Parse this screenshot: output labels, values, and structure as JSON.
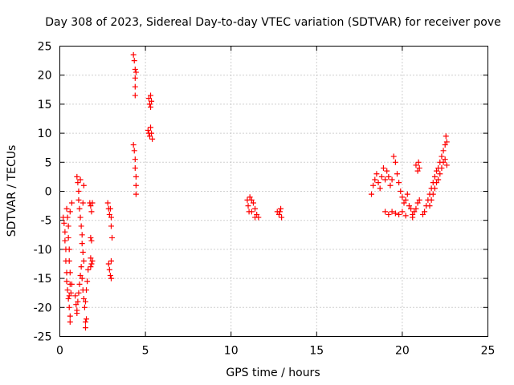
{
  "chart_data": {
    "type": "scatter",
    "title": "Day 308 of 2023, Sidereal Day-to-day VTEC variation (SDTVAR) for receiver pove",
    "xlabel": "GPS time / hours",
    "ylabel": "SDTVAR / TECUs",
    "xlim": [
      0,
      25
    ],
    "ylim": [
      -25,
      25
    ],
    "xticks": [
      0,
      5,
      10,
      15,
      20,
      25
    ],
    "yticks": [
      -25,
      -20,
      -15,
      -10,
      -5,
      0,
      5,
      10,
      15,
      20,
      25
    ],
    "grid": true,
    "marker": "+",
    "color": "#ff0000",
    "series": [
      {
        "name": "SDTVAR",
        "points": [
          [
            0.2,
            -4.5
          ],
          [
            0.25,
            -5.5
          ],
          [
            0.3,
            -7
          ],
          [
            0.3,
            -8.5
          ],
          [
            0.35,
            -10
          ],
          [
            0.35,
            -12
          ],
          [
            0.4,
            -14
          ],
          [
            0.4,
            -15.5
          ],
          [
            0.45,
            -17
          ],
          [
            0.5,
            -18.5
          ],
          [
            0.55,
            -20
          ],
          [
            0.6,
            -21.5
          ],
          [
            0.6,
            -22.5
          ],
          [
            0.4,
            -3
          ],
          [
            0.45,
            -4.5
          ],
          [
            0.5,
            -6
          ],
          [
            0.5,
            -8
          ],
          [
            0.55,
            -10
          ],
          [
            0.55,
            -12
          ],
          [
            0.6,
            -14
          ],
          [
            0.6,
            -16
          ],
          [
            0.55,
            -18
          ],
          [
            0.6,
            -3.5
          ],
          [
            0.7,
            -2
          ],
          [
            0.7,
            -16
          ],
          [
            0.65,
            -17.5
          ],
          [
            0.9,
            -18
          ],
          [
            0.95,
            -19.5
          ],
          [
            1.0,
            -20.5
          ],
          [
            1.0,
            -21
          ],
          [
            1.05,
            -19
          ],
          [
            1.1,
            -17.5
          ],
          [
            1.15,
            -16
          ],
          [
            1.2,
            -14.5
          ],
          [
            1.25,
            -13
          ],
          [
            1.3,
            -15
          ],
          [
            1.35,
            -17
          ],
          [
            1.4,
            -18.5
          ],
          [
            1.45,
            -20
          ],
          [
            1.5,
            -19
          ],
          [
            1.55,
            -17
          ],
          [
            1.6,
            -15.5
          ],
          [
            1.65,
            -13.5
          ],
          [
            1.0,
            2.5
          ],
          [
            1.05,
            1.5
          ],
          [
            1.1,
            0
          ],
          [
            1.1,
            -1.5
          ],
          [
            1.15,
            -3
          ],
          [
            1.2,
            -4.5
          ],
          [
            1.25,
            -6
          ],
          [
            1.3,
            -7.5
          ],
          [
            1.3,
            -9
          ],
          [
            1.35,
            -10.5
          ],
          [
            1.4,
            -12
          ],
          [
            1.4,
            1
          ],
          [
            1.35,
            -2
          ],
          [
            1.2,
            2
          ],
          [
            1.5,
            -22.5
          ],
          [
            1.5,
            -23.5
          ],
          [
            1.55,
            -22
          ],
          [
            1.75,
            -2
          ],
          [
            1.8,
            -2.5
          ],
          [
            1.85,
            -3.5
          ],
          [
            1.9,
            -2
          ],
          [
            1.8,
            -8
          ],
          [
            1.85,
            -8.5
          ],
          [
            1.8,
            -11.5
          ],
          [
            1.85,
            -12.5
          ],
          [
            1.9,
            -12
          ],
          [
            1.8,
            -13
          ],
          [
            2.8,
            -2
          ],
          [
            2.85,
            -3
          ],
          [
            2.9,
            -4
          ],
          [
            2.95,
            -3
          ],
          [
            3.0,
            -4.5
          ],
          [
            3.0,
            -6
          ],
          [
            3.05,
            -8
          ],
          [
            2.85,
            -12.5
          ],
          [
            2.9,
            -13.5
          ],
          [
            2.95,
            -14.5
          ],
          [
            3.0,
            -12
          ],
          [
            3.0,
            -15
          ],
          [
            4.3,
            23.5
          ],
          [
            4.35,
            22.5
          ],
          [
            4.4,
            21
          ],
          [
            4.4,
            19.5
          ],
          [
            4.45,
            20.5
          ],
          [
            4.4,
            18
          ],
          [
            4.4,
            16.5
          ],
          [
            4.3,
            8
          ],
          [
            4.35,
            7
          ],
          [
            4.4,
            5.5
          ],
          [
            4.4,
            4
          ],
          [
            4.45,
            2.5
          ],
          [
            4.45,
            1
          ],
          [
            4.45,
            -0.5
          ],
          [
            5.2,
            16
          ],
          [
            5.25,
            15
          ],
          [
            5.3,
            16.5
          ],
          [
            5.35,
            15.5
          ],
          [
            5.3,
            14.5
          ],
          [
            5.15,
            10.5
          ],
          [
            5.2,
            10
          ],
          [
            5.25,
            9.5
          ],
          [
            5.3,
            11
          ],
          [
            5.35,
            10
          ],
          [
            5.4,
            9
          ],
          [
            10.95,
            -1.5
          ],
          [
            11.0,
            -2.5
          ],
          [
            11.05,
            -3.5
          ],
          [
            11.1,
            -1
          ],
          [
            11.2,
            -1.5
          ],
          [
            11.3,
            -2
          ],
          [
            11.4,
            -3
          ],
          [
            11.5,
            -4
          ],
          [
            11.6,
            -4.5
          ],
          [
            11.4,
            -4.5
          ],
          [
            11.2,
            -3.5
          ],
          [
            12.7,
            -3.5
          ],
          [
            12.8,
            -4
          ],
          [
            12.9,
            -3
          ],
          [
            12.95,
            -4.5
          ],
          [
            12.85,
            -3.5
          ],
          [
            18.2,
            -0.5
          ],
          [
            18.3,
            1
          ],
          [
            18.4,
            2
          ],
          [
            18.5,
            3
          ],
          [
            18.6,
            1.5
          ],
          [
            18.7,
            0.5
          ],
          [
            18.8,
            2.5
          ],
          [
            18.9,
            4
          ],
          [
            19.0,
            2
          ],
          [
            19.1,
            3.5
          ],
          [
            19.2,
            2.5
          ],
          [
            19.3,
            1
          ],
          [
            19.4,
            2
          ],
          [
            19.5,
            6
          ],
          [
            19.6,
            5
          ],
          [
            19.7,
            3
          ],
          [
            19.8,
            1.5
          ],
          [
            19.9,
            0
          ],
          [
            20.0,
            -1
          ],
          [
            20.1,
            -2
          ],
          [
            20.2,
            -1.5
          ],
          [
            20.3,
            -0.5
          ],
          [
            20.4,
            -2.5
          ],
          [
            20.5,
            -3
          ],
          [
            20.6,
            -4
          ],
          [
            20.7,
            -3.5
          ],
          [
            20.8,
            -3
          ],
          [
            20.9,
            -2
          ],
          [
            21.0,
            -1.5
          ],
          [
            19.0,
            -3.5
          ],
          [
            19.2,
            -4
          ],
          [
            19.4,
            -3.5
          ],
          [
            19.6,
            -3.8
          ],
          [
            19.8,
            -4
          ],
          [
            20.0,
            -3.5
          ],
          [
            20.2,
            -4.2
          ],
          [
            20.6,
            -4.5
          ],
          [
            20.8,
            4.5
          ],
          [
            20.9,
            3.5
          ],
          [
            20.95,
            5
          ],
          [
            21.0,
            4
          ],
          [
            21.2,
            -4
          ],
          [
            21.3,
            -3.5
          ],
          [
            21.4,
            -2.5
          ],
          [
            21.5,
            -1.5
          ],
          [
            21.6,
            -0.5
          ],
          [
            21.7,
            0.5
          ],
          [
            21.8,
            1.5
          ],
          [
            21.9,
            2.5
          ],
          [
            22.0,
            3.5
          ],
          [
            22.1,
            4
          ],
          [
            22.2,
            5
          ],
          [
            22.3,
            6
          ],
          [
            22.4,
            7
          ],
          [
            22.5,
            8
          ],
          [
            22.55,
            9.5
          ],
          [
            22.6,
            8.5
          ],
          [
            21.6,
            -2.5
          ],
          [
            21.7,
            -1.5
          ],
          [
            21.8,
            -0.5
          ],
          [
            21.9,
            0.5
          ],
          [
            22.0,
            1.5
          ],
          [
            22.1,
            2
          ],
          [
            22.2,
            3
          ],
          [
            22.3,
            4
          ],
          [
            22.4,
            5
          ],
          [
            22.5,
            5.5
          ],
          [
            22.6,
            4.5
          ]
        ]
      }
    ]
  }
}
